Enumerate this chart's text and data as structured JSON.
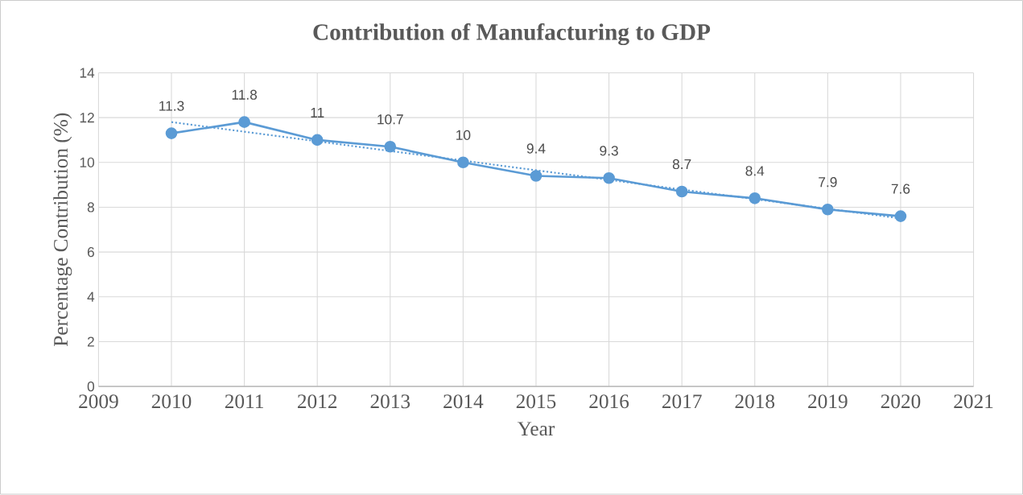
{
  "chart_data": {
    "type": "line",
    "title": "Contribution of Manufacturing to GDP",
    "xlabel": "Year",
    "ylabel": "Percentage Contribution (%)",
    "x": [
      2010,
      2011,
      2012,
      2013,
      2014,
      2015,
      2016,
      2017,
      2018,
      2019,
      2020
    ],
    "series": [
      {
        "color": "#5b9bd5",
        "values": [
          11.3,
          11.8,
          11,
          10.7,
          10,
          9.4,
          9.3,
          8.7,
          8.4,
          7.9,
          7.6
        ],
        "marker": "circle",
        "line_style": "solid",
        "data_labels": true
      },
      {
        "type": "line",
        "color": "#5b9bd5",
        "x": [
          2010,
          2020
        ],
        "values": [
          11.8,
          7.5
        ],
        "marker": "none",
        "line_style": "dotted"
      }
    ],
    "xlim": [
      2009,
      2021
    ],
    "ylim": [
      0,
      14
    ],
    "xticks": [
      2009,
      2010,
      2011,
      2012,
      2013,
      2014,
      2015,
      2016,
      2017,
      2018,
      2019,
      2020,
      2021
    ],
    "yticks": [
      0,
      2,
      4,
      6,
      8,
      10,
      12,
      14
    ],
    "grid": true
  }
}
